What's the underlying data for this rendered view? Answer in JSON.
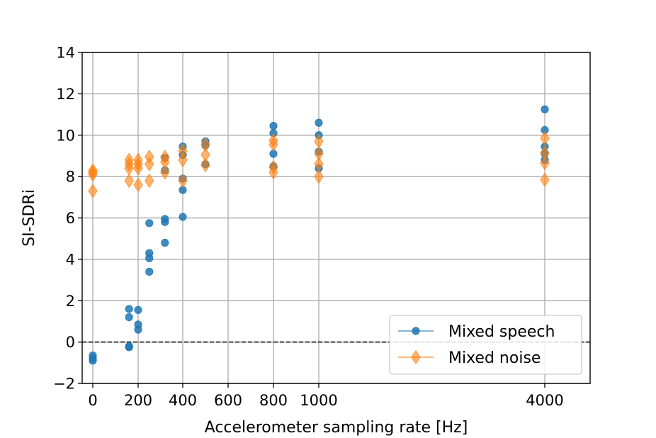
{
  "chart_data": {
    "type": "scatter",
    "title": "",
    "xlabel": "Accelerometer sampling rate [Hz]",
    "ylabel": "SI-SDRi",
    "ylim": [
      -2,
      14
    ],
    "grid": true,
    "x_ticks": [
      {
        "value": 0,
        "label": "0"
      },
      {
        "value": 200,
        "label": "200"
      },
      {
        "value": 400,
        "label": "400"
      },
      {
        "value": 600,
        "label": "600"
      },
      {
        "value": 800,
        "label": "800"
      },
      {
        "value": 1000,
        "label": "1000"
      },
      {
        "value": 4000,
        "label": "4000"
      }
    ],
    "y_ticks": [
      {
        "value": -2,
        "label": "−2"
      },
      {
        "value": 0,
        "label": "0"
      },
      {
        "value": 2,
        "label": "2"
      },
      {
        "value": 4,
        "label": "4"
      },
      {
        "value": 6,
        "label": "6"
      },
      {
        "value": 8,
        "label": "8"
      },
      {
        "value": 10,
        "label": "10"
      },
      {
        "value": 12,
        "label": "12"
      },
      {
        "value": 14,
        "label": "14"
      }
    ],
    "reference_line": {
      "y": 0,
      "style": "dashed",
      "color": "#000000"
    },
    "legend_position": "lower-right",
    "series": [
      {
        "name": "Mixed speech",
        "color": "#1f77b4",
        "marker": "circle",
        "points": [
          [
            0,
            -0.65
          ],
          [
            0,
            -0.8
          ],
          [
            0,
            -0.9
          ],
          [
            160,
            1.6
          ],
          [
            160,
            1.2
          ],
          [
            160,
            -0.2
          ],
          [
            160,
            -0.25
          ],
          [
            200,
            1.55
          ],
          [
            200,
            0.85
          ],
          [
            200,
            0.6
          ],
          [
            250,
            5.75
          ],
          [
            250,
            4.3
          ],
          [
            250,
            4.05
          ],
          [
            250,
            3.4
          ],
          [
            320,
            5.95
          ],
          [
            320,
            5.8
          ],
          [
            320,
            4.8
          ],
          [
            320,
            8.3
          ],
          [
            320,
            8.9
          ],
          [
            400,
            9.45
          ],
          [
            400,
            9.05
          ],
          [
            400,
            7.35
          ],
          [
            400,
            6.05
          ],
          [
            400,
            7.9
          ],
          [
            500,
            9.7
          ],
          [
            500,
            9.5
          ],
          [
            500,
            8.6
          ],
          [
            800,
            10.45
          ],
          [
            800,
            10.1
          ],
          [
            800,
            9.1
          ],
          [
            800,
            8.5
          ],
          [
            1000,
            10.6
          ],
          [
            1000,
            10.0
          ],
          [
            1000,
            9.2
          ],
          [
            1000,
            8.4
          ],
          [
            4000,
            11.25
          ],
          [
            4000,
            10.25
          ],
          [
            4000,
            9.45
          ],
          [
            4000,
            9.1
          ],
          [
            4000,
            8.8
          ]
        ]
      },
      {
        "name": "Mixed noise",
        "color": "#ff7f0e",
        "marker": "diamond",
        "points": [
          [
            0,
            8.3
          ],
          [
            0,
            8.2
          ],
          [
            0,
            8.1
          ],
          [
            0,
            7.3
          ],
          [
            160,
            8.8
          ],
          [
            160,
            8.6
          ],
          [
            160,
            8.4
          ],
          [
            160,
            7.8
          ],
          [
            200,
            8.8
          ],
          [
            200,
            8.6
          ],
          [
            200,
            8.4
          ],
          [
            200,
            7.6
          ],
          [
            250,
            8.95
          ],
          [
            250,
            8.6
          ],
          [
            250,
            7.8
          ],
          [
            320,
            8.95
          ],
          [
            320,
            8.7
          ],
          [
            320,
            8.2
          ],
          [
            400,
            9.25
          ],
          [
            400,
            8.8
          ],
          [
            400,
            7.8
          ],
          [
            500,
            9.55
          ],
          [
            500,
            9.05
          ],
          [
            500,
            8.55
          ],
          [
            800,
            9.75
          ],
          [
            800,
            9.55
          ],
          [
            800,
            8.45
          ],
          [
            800,
            8.2
          ],
          [
            1000,
            9.7
          ],
          [
            1000,
            9.1
          ],
          [
            1000,
            8.6
          ],
          [
            1000,
            8.0
          ],
          [
            4000,
            9.85
          ],
          [
            4000,
            9.15
          ],
          [
            4000,
            8.65
          ],
          [
            4000,
            7.85
          ]
        ]
      }
    ]
  }
}
